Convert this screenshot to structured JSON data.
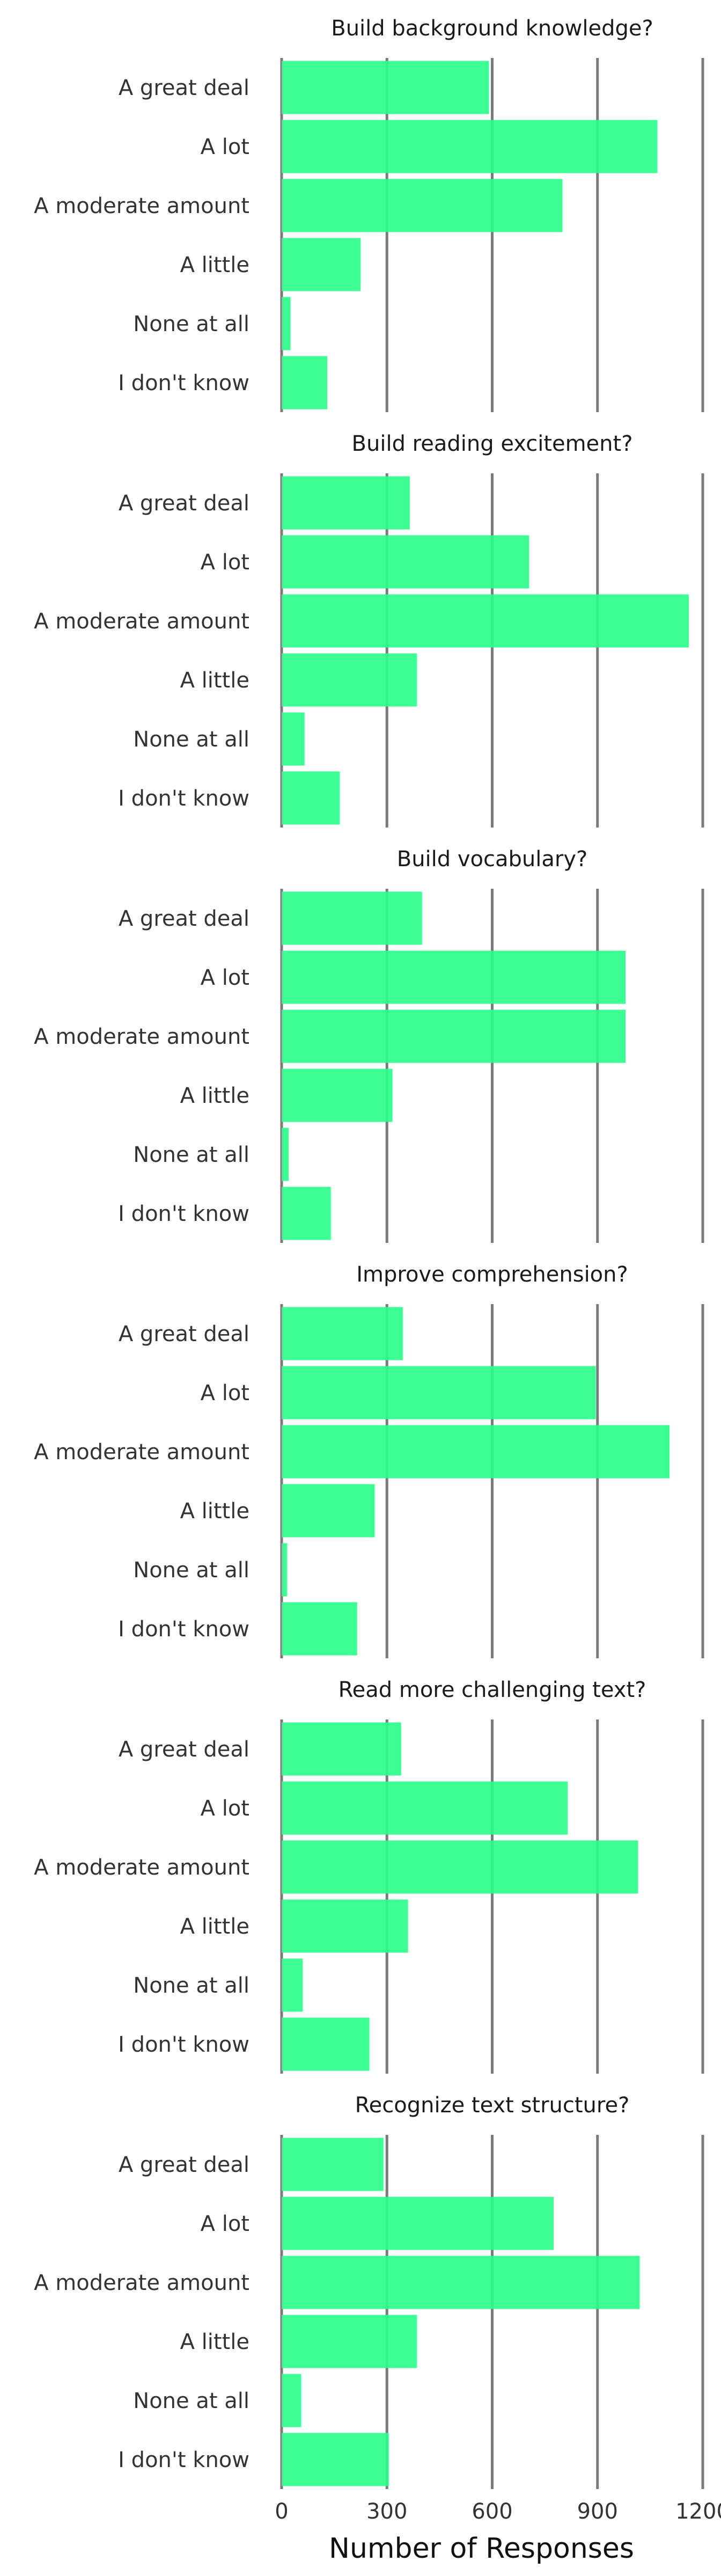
{
  "colors": {
    "bar": "#2bfd88",
    "grid": "#7a7a7a"
  },
  "chart_data": {
    "type": "bar",
    "orientation": "horizontal",
    "categories": [
      "A great deal",
      "A lot",
      "A moderate amount",
      "A little",
      "None at all",
      "I don't know"
    ],
    "xlabel": "Number of Responses",
    "xlim": [
      0,
      1200
    ],
    "xticks": [
      0,
      300,
      600,
      900,
      1200
    ],
    "grid": "vertical",
    "panels": [
      {
        "title": "Build background knowledge?",
        "values": [
          590,
          1070,
          800,
          225,
          25,
          130
        ]
      },
      {
        "title": "Build reading excitement?",
        "values": [
          365,
          705,
          1160,
          385,
          65,
          165
        ]
      },
      {
        "title": "Build vocabulary?",
        "values": [
          400,
          980,
          980,
          315,
          20,
          140
        ]
      },
      {
        "title": "Improve comprehension?",
        "values": [
          345,
          895,
          1105,
          265,
          15,
          215
        ]
      },
      {
        "title": "Read more challenging text?",
        "values": [
          340,
          815,
          1015,
          360,
          60,
          250
        ]
      },
      {
        "title": "Recognize text structure?",
        "values": [
          290,
          775,
          1020,
          385,
          55,
          305
        ]
      }
    ]
  }
}
